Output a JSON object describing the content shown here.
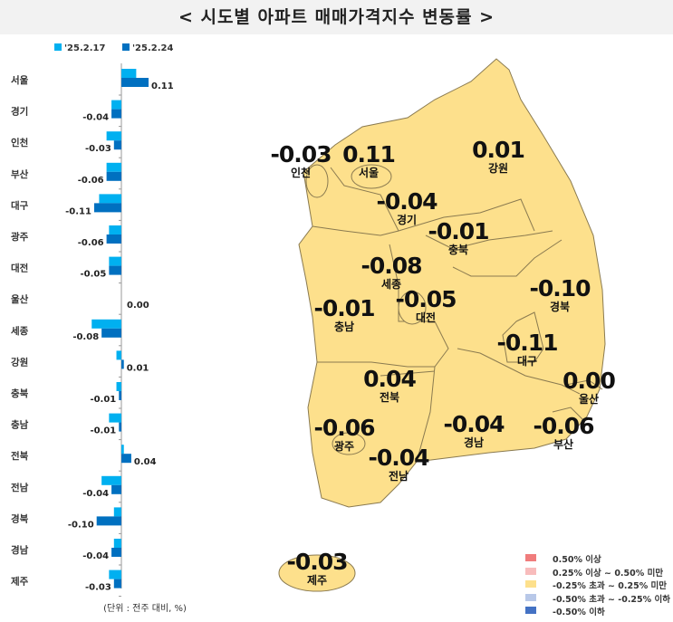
{
  "title": "< 시도별 아파트 매매가격지수 변동률 >",
  "chart_data": {
    "type": "bar",
    "orientation": "horizontal",
    "categories": [
      "서울",
      "경기",
      "인천",
      "부산",
      "대구",
      "광주",
      "대전",
      "울산",
      "세종",
      "강원",
      "충북",
      "충남",
      "전북",
      "전남",
      "경북",
      "경남",
      "제주"
    ],
    "series": [
      {
        "name": "'25.2.17",
        "color": "#00b0f0",
        "values": [
          0.06,
          -0.04,
          -0.06,
          -0.06,
          -0.09,
          -0.05,
          -0.05,
          0.0,
          -0.12,
          -0.02,
          -0.02,
          -0.05,
          0.01,
          -0.08,
          -0.03,
          -0.03,
          -0.05
        ]
      },
      {
        "name": "'25.2.24",
        "color": "#0070c0",
        "values": [
          0.11,
          -0.04,
          -0.03,
          -0.06,
          -0.11,
          -0.06,
          -0.05,
          0.0,
          -0.08,
          0.01,
          -0.01,
          -0.01,
          0.04,
          -0.04,
          -0.1,
          -0.04,
          -0.03
        ]
      }
    ],
    "data_labels": [
      "0.11",
      "-0.04",
      "-0.03",
      "-0.06",
      "-0.11",
      "-0.06",
      "-0.05",
      "0.00",
      "-0.08",
      "0.01",
      "-0.01",
      "-0.01",
      "0.04",
      "-0.04",
      "-0.10",
      "-0.04",
      "-0.03"
    ],
    "legend_position": "top",
    "unit_note": "(단위 : 전주 대비, %)"
  },
  "map": {
    "regions": [
      {
        "name": "인천",
        "value": "-0.03"
      },
      {
        "name": "서울",
        "value": "0.11"
      },
      {
        "name": "강원",
        "value": "0.01"
      },
      {
        "name": "경기",
        "value": "-0.04"
      },
      {
        "name": "충북",
        "value": "-0.01"
      },
      {
        "name": "세종",
        "value": "-0.08"
      },
      {
        "name": "경북",
        "value": "-0.10"
      },
      {
        "name": "충남",
        "value": "-0.01"
      },
      {
        "name": "대전",
        "value": "-0.05"
      },
      {
        "name": "대구",
        "value": "-0.11"
      },
      {
        "name": "전북",
        "value": "0.04"
      },
      {
        "name": "울산",
        "value": "0.00"
      },
      {
        "name": "광주",
        "value": "-0.06"
      },
      {
        "name": "경남",
        "value": "-0.04"
      },
      {
        "name": "부산",
        "value": "-0.06"
      },
      {
        "name": "전남",
        "value": "-0.04"
      },
      {
        "name": "제주",
        "value": "-0.03"
      }
    ],
    "fill_color": "#fde08c",
    "legend": [
      {
        "label": "0.50% 이상",
        "color": "#f07c7c"
      },
      {
        "label": "0.25% 이상 ~ 0.50% 미만",
        "color": "#f8bcbc"
      },
      {
        "label": "-0.25% 초과 ~ 0.25% 미만",
        "color": "#fde08c"
      },
      {
        "label": "-0.50% 초과 ~ -0.25% 이하",
        "color": "#b8c8e8"
      },
      {
        "label": "-0.50% 이하",
        "color": "#4472c4"
      }
    ]
  }
}
